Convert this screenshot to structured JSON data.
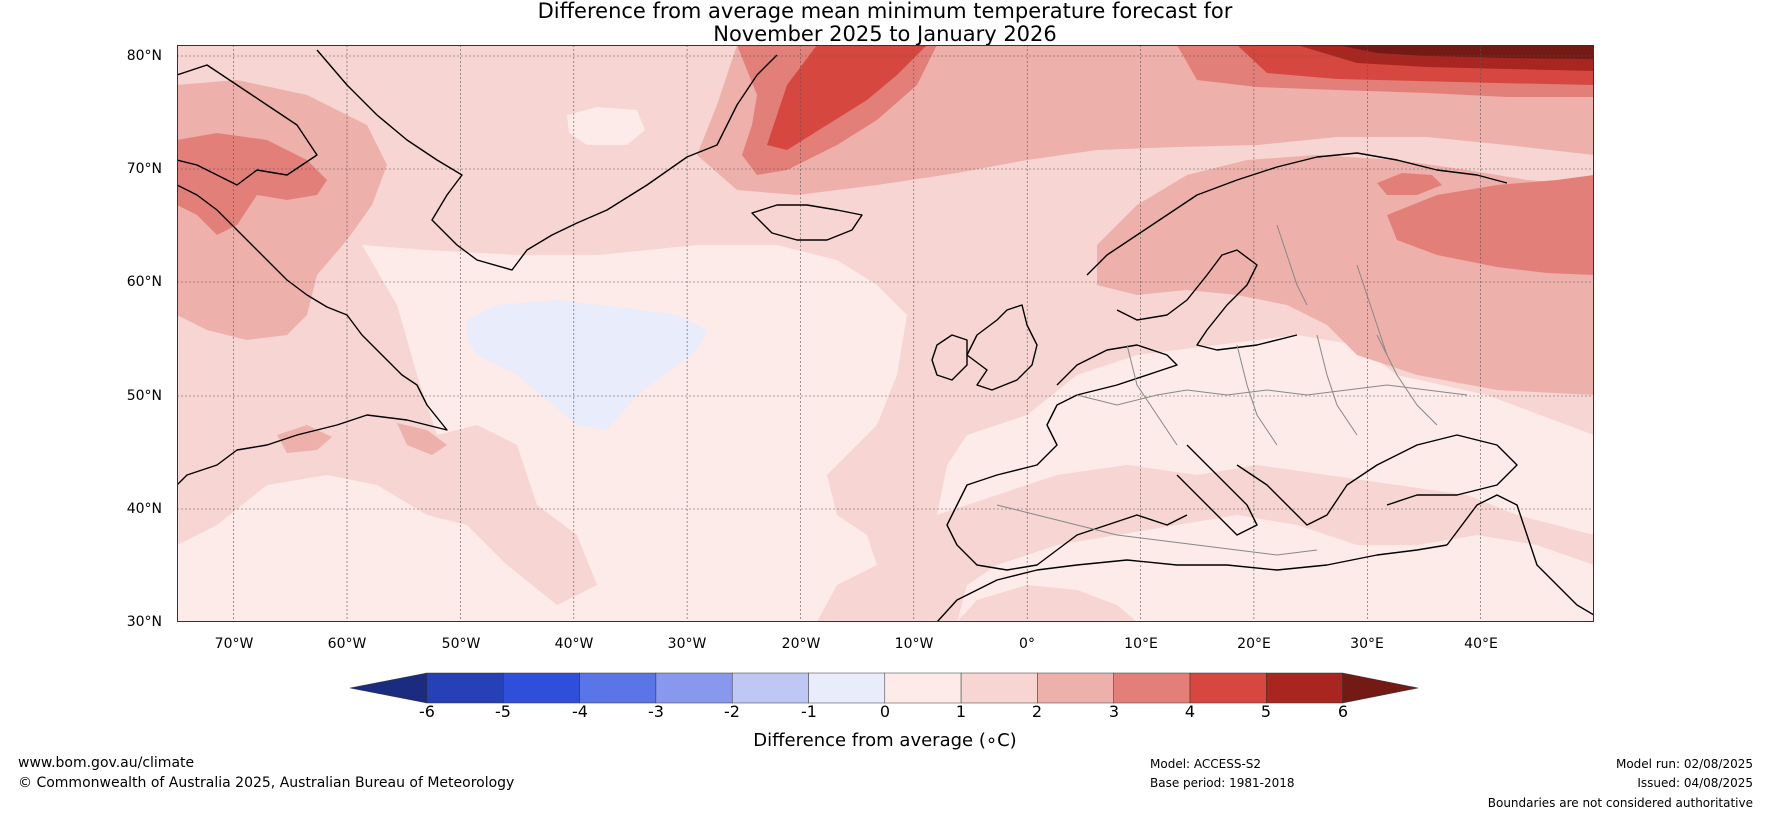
{
  "title": {
    "line1": "Difference from average mean minimum temperature forecast for",
    "line2": "November 2025 to January 2026"
  },
  "map": {
    "lat_range": [
      30,
      80
    ],
    "lon_range": [
      -75,
      50
    ],
    "lat_ticks": [
      "30°N",
      "40°N",
      "50°N",
      "60°N",
      "70°N",
      "80°N"
    ],
    "lon_ticks": [
      "70°W",
      "60°W",
      "50°W",
      "40°W",
      "30°W",
      "20°W",
      "10°W",
      "0°",
      "10°E",
      "20°E",
      "30°E",
      "40°E"
    ],
    "gridlines": true
  },
  "colorbar": {
    "label": "Difference from average (∘C)",
    "ticks": [
      "-6",
      "-5",
      "-4",
      "-3",
      "-2",
      "-1",
      "0",
      "1",
      "2",
      "3",
      "4",
      "5",
      "6"
    ],
    "extend": "both",
    "colors": {
      "below_-6": "#1a2b80",
      "-6_-5": "#2640b6",
      "-5_-4": "#2f4fdb",
      "-4_-3": "#5a75e6",
      "-3_-2": "#8898ec",
      "-2_-1": "#bfc8f4",
      "-1_0": "#e8ecfb",
      "0_1": "#fcebe8",
      "1_2": "#f6d5d2",
      "2_3": "#eeb0ab",
      "3_4": "#e37f79",
      "4_5": "#d6483f",
      "5_6": "#a8261f",
      "above_6": "#731a14"
    }
  },
  "footer": {
    "website": "www.bom.gov.au/climate",
    "copyright": "© Commonwealth of Australia 2025, Australian Bureau of Meteorology",
    "model": "Model: ACCESS-S2",
    "base_period": "Base period: 1981-2018",
    "model_run": "Model run: 02/08/2025",
    "issued": "Issued: 04/08/2025",
    "disclaimer": "Boundaries are not considered authoritative"
  }
}
